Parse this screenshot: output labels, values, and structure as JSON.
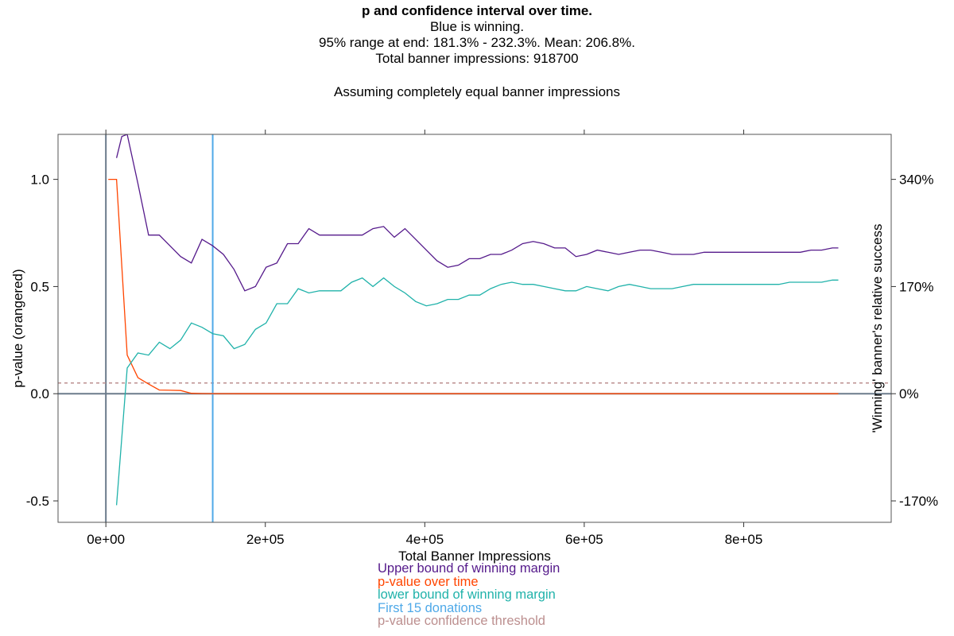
{
  "header": {
    "title": "p and confidence interval over time.",
    "lines": [
      "Blue is winning.",
      "95% range at end: 181.3% - 232.3%. Mean: 206.8%.",
      "Total banner impressions: 918700"
    ],
    "note": "Assuming completely equal banner impressions"
  },
  "chart_data": {
    "type": "line",
    "title": "p and confidence interval over time.",
    "xlabel": "Total Banner Impressions",
    "ylabel": "p-value (orangered)",
    "ylabel_right": "'Winning' banner's relative success",
    "xlim": [
      -60000,
      985000
    ],
    "ylim": [
      -0.6,
      1.21
    ],
    "x_ticks": [
      0,
      200000,
      400000,
      600000,
      800000
    ],
    "x_tick_labels": [
      "0e+00",
      "2e+05",
      "4e+05",
      "6e+05",
      "8e+05"
    ],
    "y_ticks": [
      -0.5,
      0,
      0.5,
      1
    ],
    "y_tick_labels": [
      "-0.5",
      "0.0",
      "0.5",
      "1.0"
    ],
    "y2_ticks": [
      -0.5,
      0,
      0.5,
      1
    ],
    "y2_tick_labels": [
      "-170%",
      "0%",
      "170%",
      "340%"
    ],
    "grid": false,
    "legend_position": "bottom-center",
    "colors": {
      "upper": "#551a8b",
      "pvalue": "#ff4500",
      "lower": "#20b2aa",
      "donations": "#4fa9e8",
      "threshold": "#bc8f8f",
      "axis_zero": "#6b7b8b"
    },
    "reference_lines": {
      "threshold_y": 0.05,
      "zero_y": 0,
      "zero_x": 0,
      "first_donations_x": 134000
    },
    "series": [
      {
        "name": "Upper bound of winning margin",
        "color_key": "upper",
        "x": [
          13400,
          20000,
          26800,
          40200,
          53600,
          67000,
          80400,
          93800,
          107200,
          120600,
          134000,
          147400,
          160800,
          174200,
          187600,
          201000,
          214400,
          227800,
          241200,
          254600,
          268000,
          281400,
          294800,
          308200,
          321600,
          335000,
          348400,
          361800,
          375200,
          388600,
          402000,
          415400,
          428800,
          442200,
          455600,
          469000,
          482400,
          495800,
          509200,
          522600,
          536000,
          549400,
          562800,
          576200,
          589600,
          603000,
          616400,
          629800,
          643200,
          656600,
          670000,
          683400,
          696800,
          710200,
          723600,
          737000,
          750400,
          763800,
          777200,
          790600,
          804000,
          817400,
          830800,
          844200,
          857600,
          871000,
          884400,
          897800,
          911200,
          918700
        ],
        "y": [
          1.1,
          1.2,
          1.21,
          0.98,
          0.74,
          0.74,
          0.69,
          0.64,
          0.61,
          0.72,
          0.69,
          0.65,
          0.58,
          0.48,
          0.5,
          0.59,
          0.61,
          0.7,
          0.7,
          0.77,
          0.74,
          0.74,
          0.74,
          0.74,
          0.74,
          0.77,
          0.78,
          0.73,
          0.77,
          0.72,
          0.67,
          0.62,
          0.59,
          0.6,
          0.63,
          0.63,
          0.65,
          0.65,
          0.67,
          0.7,
          0.71,
          0.7,
          0.68,
          0.68,
          0.64,
          0.65,
          0.67,
          0.66,
          0.65,
          0.66,
          0.67,
          0.67,
          0.66,
          0.65,
          0.65,
          0.65,
          0.66,
          0.66,
          0.66,
          0.66,
          0.66,
          0.66,
          0.66,
          0.66,
          0.66,
          0.66,
          0.67,
          0.67,
          0.68,
          0.68
        ]
      },
      {
        "name": "p-value over time",
        "color_key": "pvalue",
        "x": [
          3000,
          13400,
          26800,
          40200,
          53600,
          67000,
          80400,
          93800,
          107200,
          120600,
          134000,
          174200,
          918700
        ],
        "y": [
          1.0,
          1.0,
          0.18,
          0.075,
          0.045,
          0.017,
          0.016,
          0.015,
          0.002,
          0.001,
          0.0005,
          0.0002,
          0.0
        ]
      },
      {
        "name": "lower bound of winning margin",
        "color_key": "lower",
        "x": [
          13400,
          26800,
          40200,
          53600,
          67000,
          80400,
          93800,
          107200,
          120600,
          134000,
          147400,
          160800,
          174200,
          187600,
          201000,
          214400,
          227800,
          241200,
          254600,
          268000,
          281400,
          294800,
          308200,
          321600,
          335000,
          348400,
          361800,
          375200,
          388600,
          402000,
          415400,
          428800,
          442200,
          455600,
          469000,
          482400,
          495800,
          509200,
          522600,
          536000,
          549400,
          562800,
          576200,
          589600,
          603000,
          616400,
          629800,
          643200,
          656600,
          670000,
          683400,
          696800,
          710200,
          723600,
          737000,
          750400,
          763800,
          777200,
          790600,
          804000,
          817400,
          830800,
          844200,
          857600,
          871000,
          884400,
          897800,
          911200,
          918700
        ],
        "y": [
          -0.52,
          0.12,
          0.19,
          0.18,
          0.24,
          0.21,
          0.25,
          0.33,
          0.31,
          0.28,
          0.27,
          0.21,
          0.23,
          0.3,
          0.33,
          0.42,
          0.42,
          0.49,
          0.47,
          0.48,
          0.48,
          0.48,
          0.52,
          0.54,
          0.5,
          0.54,
          0.5,
          0.47,
          0.43,
          0.41,
          0.42,
          0.44,
          0.44,
          0.46,
          0.46,
          0.49,
          0.51,
          0.52,
          0.51,
          0.51,
          0.5,
          0.49,
          0.48,
          0.48,
          0.5,
          0.49,
          0.48,
          0.5,
          0.51,
          0.5,
          0.49,
          0.49,
          0.49,
          0.5,
          0.51,
          0.51,
          0.51,
          0.51,
          0.51,
          0.51,
          0.51,
          0.51,
          0.51,
          0.52,
          0.52,
          0.52,
          0.52,
          0.53,
          0.53
        ]
      }
    ],
    "legend": [
      {
        "label": "Upper bound of winning margin",
        "color_key": "upper"
      },
      {
        "label": "p-value over time",
        "color_key": "pvalue"
      },
      {
        "label": "lower bound of winning margin",
        "color_key": "lower"
      },
      {
        "label": "First 15 donations",
        "color_key": "donations"
      },
      {
        "label": "p-value confidence threshold",
        "color_key": "threshold"
      }
    ]
  }
}
